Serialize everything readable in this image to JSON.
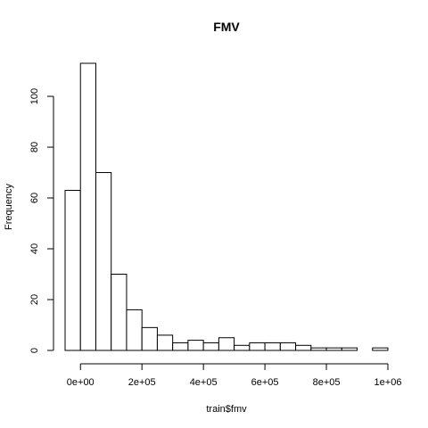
{
  "chart_data": {
    "type": "bar",
    "title": "FMV",
    "xlabel": "train$fmv",
    "ylabel": "Frequency",
    "bin_edges": [
      -50000,
      0,
      50000,
      100000,
      150000,
      200000,
      250000,
      300000,
      350000,
      400000,
      450000,
      500000,
      550000,
      600000,
      650000,
      700000,
      750000,
      800000,
      850000,
      900000,
      950000,
      1000000
    ],
    "values": [
      63,
      113,
      70,
      30,
      16,
      9,
      6,
      3,
      4,
      3,
      5,
      2,
      3,
      3,
      3,
      2,
      1,
      1,
      1,
      0,
      1
    ],
    "xlim": [
      -50000,
      1000000
    ],
    "ylim": [
      0,
      113
    ],
    "x_ticks": [
      0,
      200000,
      400000,
      600000,
      800000,
      1000000
    ],
    "x_tick_labels": [
      "0e+00",
      "2e+05",
      "4e+05",
      "6e+05",
      "8e+05",
      "1e+06"
    ],
    "y_ticks": [
      0,
      20,
      40,
      60,
      80,
      100
    ],
    "y_tick_labels": [
      "0",
      "20",
      "40",
      "60",
      "80",
      "100"
    ],
    "grid": false,
    "colors": {
      "bar_fill": "#ffffff",
      "bar_stroke": "#000000"
    }
  }
}
